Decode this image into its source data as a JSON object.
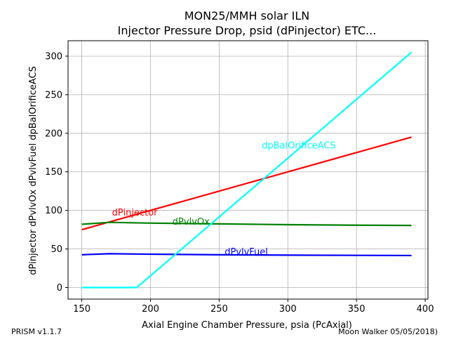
{
  "chart_data": {
    "type": "line",
    "title": "MON25/MMH solar ILN",
    "subtitle": "Injector Pressure Drop, psid (dPinjector) ETC...",
    "xlabel": "Axial Engine Chamber Pressure, psia (PcAxial)",
    "ylabel": "dPinjector dPvlvOx dPvlvFuel dpBalOrificeACS",
    "xlim": [
      140,
      402
    ],
    "ylim": [
      -15,
      320
    ],
    "xticks": [
      150,
      200,
      250,
      300,
      350,
      400
    ],
    "yticks": [
      0,
      50,
      100,
      150,
      200,
      250,
      300
    ],
    "grid": true,
    "series": [
      {
        "name": "dPinjector",
        "color": "#ff0000",
        "x": [
          150,
          390
        ],
        "y": [
          75,
          195
        ]
      },
      {
        "name": "dPvlvOx",
        "color": "#008000",
        "x": [
          150,
          170,
          200,
          250,
          300,
          350,
          390
        ],
        "y": [
          82,
          84.5,
          83.5,
          82.5,
          81.5,
          80.8,
          80.5
        ]
      },
      {
        "name": "dPvlvFuel",
        "color": "#0000ff",
        "x": [
          150,
          170,
          200,
          250,
          300,
          350,
          390
        ],
        "y": [
          42.5,
          43.8,
          43.2,
          42.5,
          42,
          41.7,
          41.5
        ]
      },
      {
        "name": "dpBalOrificeACS",
        "color": "#00ffff",
        "x": [
          150,
          190,
          390
        ],
        "y": [
          0,
          0,
          305
        ]
      }
    ],
    "annotations": [
      {
        "text": "dPinjector",
        "color": "#ff0000",
        "x": 172,
        "y": 98
      },
      {
        "text": "dPvlvOx",
        "color": "#008000",
        "x": 216,
        "y": 86
      },
      {
        "text": "dPvlvFuel",
        "color": "#0000ff",
        "x": 254,
        "y": 47
      },
      {
        "text": "dpBalOrificeACS",
        "color": "#00ffff",
        "x": 281,
        "y": 185
      }
    ]
  },
  "footer": {
    "left": "PRISM v1.1.7",
    "right": "Moon Walker 05/05/2018)"
  }
}
